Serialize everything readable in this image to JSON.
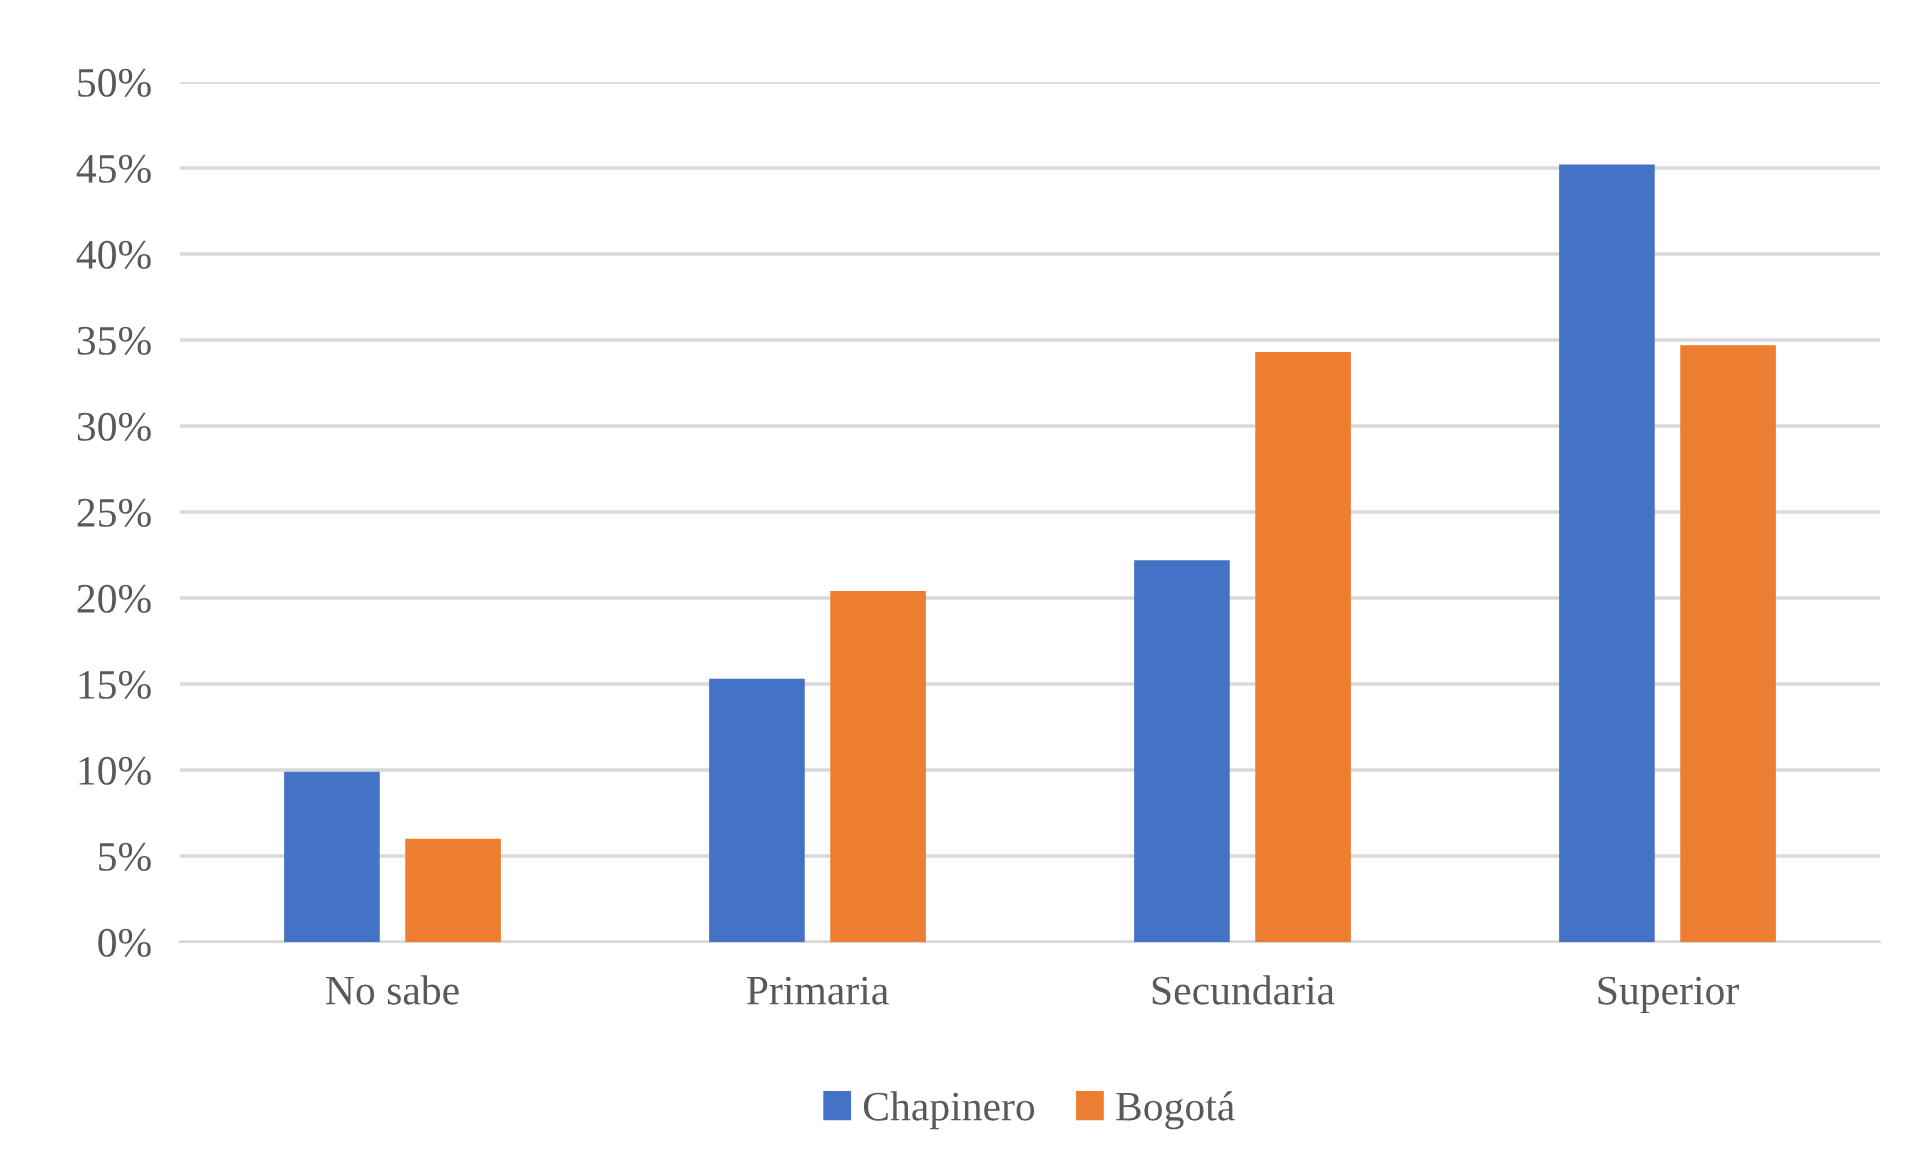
{
  "chart_data": {
    "type": "bar",
    "categories": [
      "No sabe",
      "Primaria",
      "Secundaria",
      "Superior"
    ],
    "series": [
      {
        "name": "Chapinero",
        "color": "#4472c4",
        "values": [
          9.9,
          15.3,
          22.2,
          45.2
        ]
      },
      {
        "name": "Bogotá",
        "color": "#ed7d31",
        "values": [
          6.0,
          20.4,
          34.3,
          34.7
        ]
      }
    ],
    "ylim": [
      0,
      50
    ],
    "yticks": [
      {
        "value": 0,
        "label": "0%"
      },
      {
        "value": 5,
        "label": "5%"
      },
      {
        "value": 10,
        "label": "10%"
      },
      {
        "value": 15,
        "label": "15%"
      },
      {
        "value": 20,
        "label": "20%"
      },
      {
        "value": 25,
        "label": "25%"
      },
      {
        "value": 30,
        "label": "30%"
      },
      {
        "value": 35,
        "label": "35%"
      },
      {
        "value": 40,
        "label": "40%"
      },
      {
        "value": 45,
        "label": "45%"
      },
      {
        "value": 50,
        "label": "50%"
      }
    ],
    "grid": "y",
    "legend": "bottom"
  }
}
